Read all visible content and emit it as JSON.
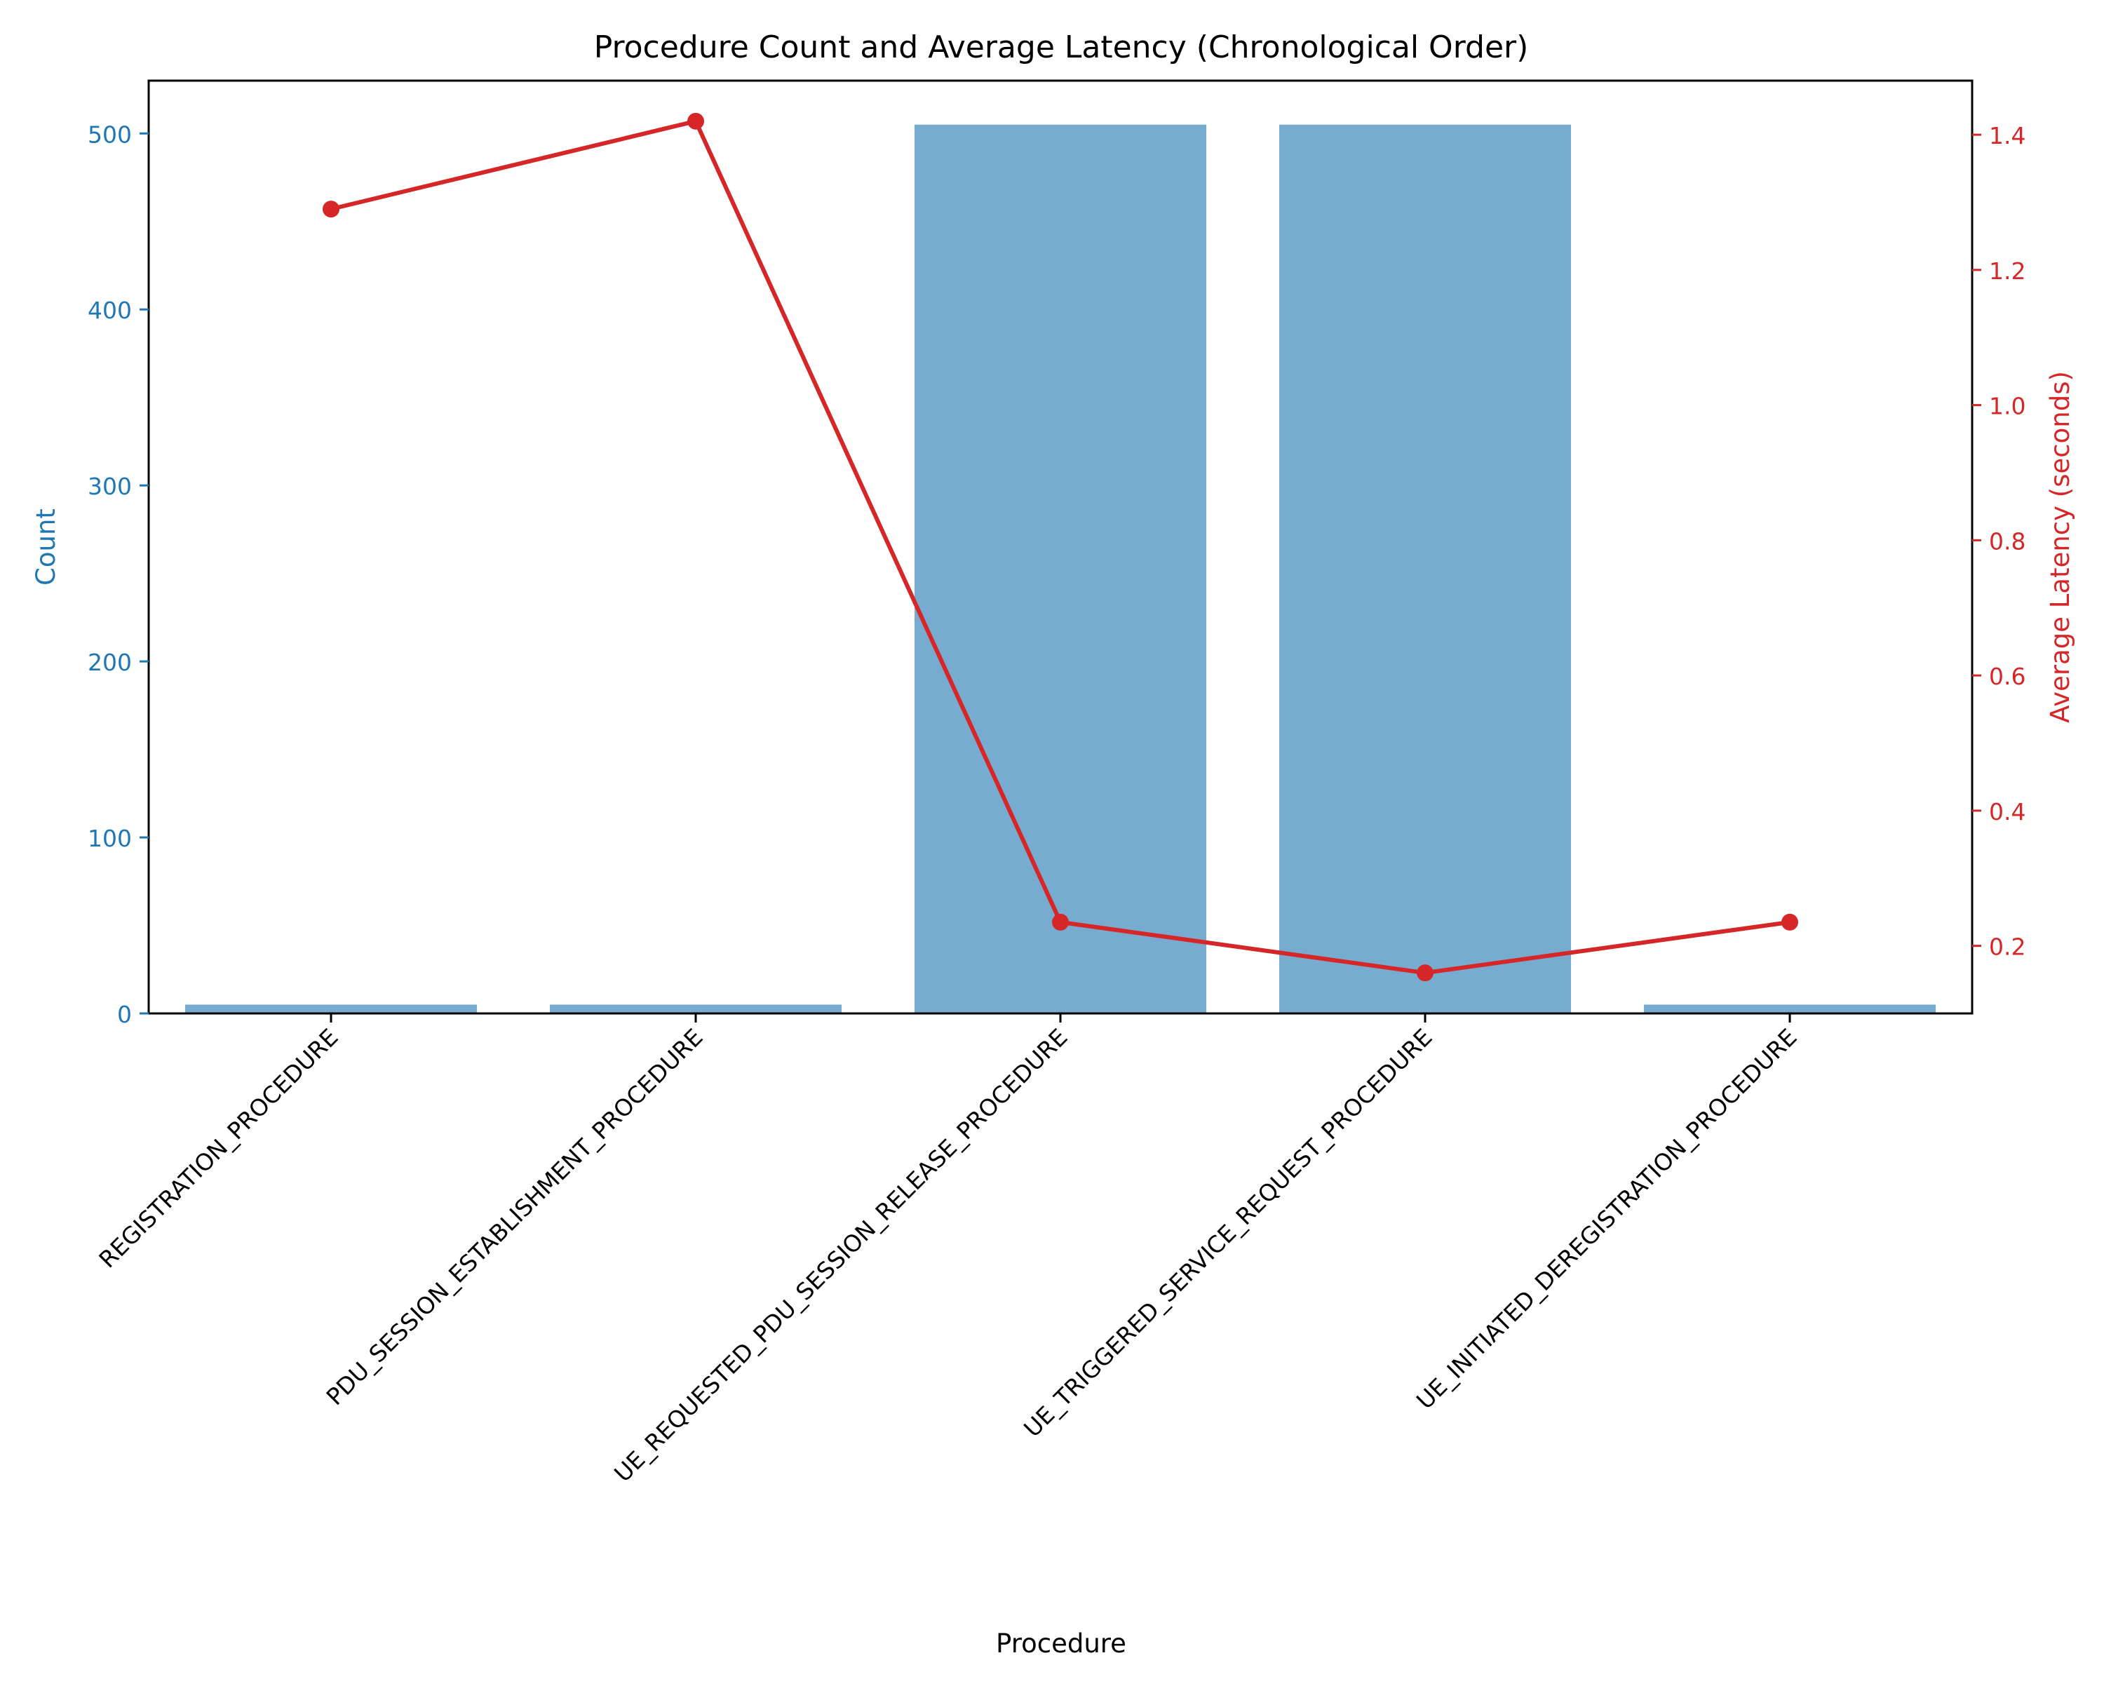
{
  "chart_data": {
    "type": "bar",
    "title": "Procedure Count and Average Latency (Chronological Order)",
    "xlabel": "Procedure",
    "ylabel": "Count",
    "y2label": "Average Latency (seconds)",
    "categories": [
      "REGISTRATION_PROCEDURE",
      "PDU_SESSION_ESTABLISHMENT_PROCEDURE",
      "UE_REQUESTED_PDU_SESSION_RELEASE_PROCEDURE",
      "UE_TRIGGERED_SERVICE_REQUEST_PROCEDURE",
      "UE_INITIATED_DEREGISTRATION_PROCEDURE"
    ],
    "series": [
      {
        "name": "Count",
        "type": "bar",
        "axis": "left",
        "color": "#77acd0",
        "values": [
          5,
          5,
          505,
          505,
          5
        ]
      },
      {
        "name": "Average Latency (seconds)",
        "type": "line",
        "axis": "right",
        "color": "#d62728",
        "values": [
          1.29,
          1.42,
          0.235,
          0.16,
          0.235
        ]
      }
    ],
    "ylim": [
      0,
      530
    ],
    "y2lim": [
      0.1,
      1.48
    ],
    "yticks": [
      0,
      100,
      200,
      300,
      400,
      500
    ],
    "y2ticks": [
      0.2,
      0.4,
      0.6,
      0.8,
      1.0,
      1.2,
      1.4
    ],
    "ytick_labels": [
      "0",
      "100",
      "200",
      "300",
      "400",
      "500"
    ],
    "y2tick_labels": [
      "0.2",
      "0.4",
      "0.6",
      "0.8",
      "1.0",
      "1.2",
      "1.4"
    ],
    "left_axis_color": "#1f77b4",
    "right_axis_color": "#d62728",
    "grid": false
  }
}
